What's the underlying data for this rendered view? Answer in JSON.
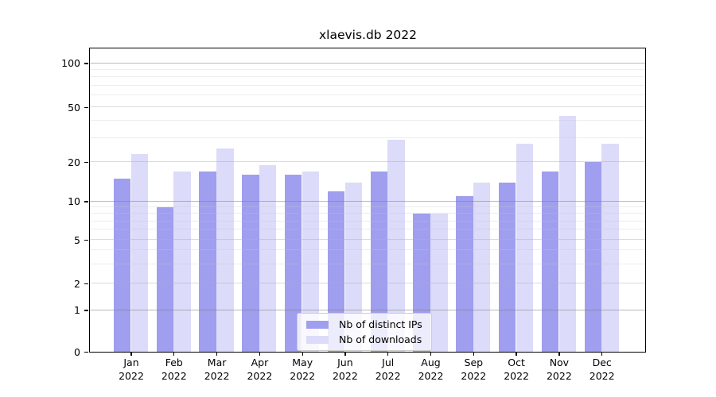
{
  "chart_data": {
    "type": "bar",
    "title": "xlaevis.db 2022",
    "categories": [
      "Jan",
      "Feb",
      "Mar",
      "Apr",
      "May",
      "Jun",
      "Jul",
      "Aug",
      "Sep",
      "Oct",
      "Nov",
      "Dec"
    ],
    "year_label": "2022",
    "series": [
      {
        "name": "Nb of distinct IPs",
        "color": "#a09eee",
        "values": [
          15,
          9,
          17,
          16,
          16,
          12,
          17,
          8,
          11,
          14,
          17,
          20
        ]
      },
      {
        "name": "Nb of downloads",
        "color": "#dcdbf9",
        "values": [
          23,
          17,
          25,
          19,
          17,
          14,
          29,
          8,
          14,
          27,
          43,
          27
        ]
      }
    ],
    "yticks": [
      0,
      1,
      2,
      5,
      10,
      20,
      50,
      100
    ],
    "minor_gridlines": [
      3,
      4,
      6,
      7,
      8,
      9,
      30,
      40,
      60,
      70,
      80,
      90
    ],
    "yscale": "symlog",
    "ylim": [
      0,
      128
    ],
    "grid": true,
    "legend_position": "lower center",
    "background_color": "#ffffff"
  }
}
